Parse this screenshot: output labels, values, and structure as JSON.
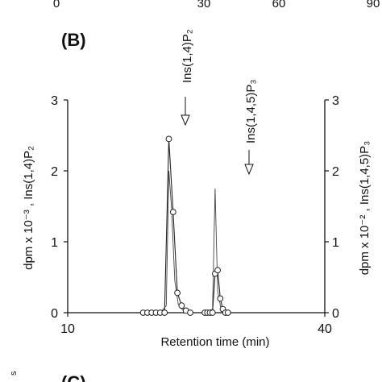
{
  "top_axis_ticks": [
    "0",
    "30",
    "60",
    "90"
  ],
  "panel_b_label": "(B)",
  "panel_c_label": "(C)",
  "panel_c_ylabel_fragment": "s",
  "chart_data": {
    "type": "line",
    "xlabel": "Retention time (min)",
    "xlim": [
      10,
      40
    ],
    "x_ticks": [
      "10",
      "40"
    ],
    "ylabel_left": "dpm x 10⁻³ , Ins(1,4)P₂",
    "ylabel_right": "dpm x 10⁻² , Ins(1,4,5)P₃",
    "ylim_left": [
      0,
      3
    ],
    "ylim_right": [
      0,
      3
    ],
    "y_ticks_left": [
      "0",
      "1",
      "2",
      "3"
    ],
    "y_ticks_right": [
      "0",
      "1",
      "2",
      "3"
    ],
    "grid": false,
    "annotations": [
      {
        "text": "Ins(1,4)P₂",
        "x": 21.6
      },
      {
        "text": "Ins(1,4,5)P₃",
        "x": 27.0
      }
    ],
    "series": [
      {
        "axis": "left",
        "marker": "open-circle",
        "x": [
          18.8,
          19.3,
          19.8,
          20.3,
          20.8,
          21.3,
          21.8,
          22.3,
          22.8,
          23.3,
          23.8,
          24.3
        ],
        "y": [
          0.0,
          0.0,
          0.0,
          0.0,
          0.0,
          0.0,
          2.45,
          1.42,
          0.28,
          0.1,
          0.03,
          0.0
        ]
      },
      {
        "axis": "right",
        "marker": "open-circle",
        "x": [
          26.0,
          26.3,
          26.6,
          26.9,
          27.2,
          27.5,
          27.8,
          28.1,
          28.4,
          28.7
        ],
        "y": [
          0.0,
          0.0,
          0.0,
          0.0,
          0.55,
          0.6,
          0.2,
          0.05,
          0.0,
          0.0
        ]
      },
      {
        "axis": "right",
        "marker": "none",
        "x": [
          26.0,
          26.9,
          27.2,
          27.5,
          27.9,
          28.3,
          28.7
        ],
        "y": [
          0.0,
          0.05,
          1.75,
          0.3,
          0.05,
          0.0,
          0.0
        ]
      },
      {
        "axis": "left",
        "marker": "none",
        "x": [
          20.8,
          21.5,
          21.8,
          22.1,
          22.5,
          22.9,
          23.4,
          24.3
        ],
        "y": [
          0.0,
          0.1,
          2.0,
          1.5,
          0.45,
          0.12,
          0.04,
          0.0
        ]
      }
    ]
  }
}
